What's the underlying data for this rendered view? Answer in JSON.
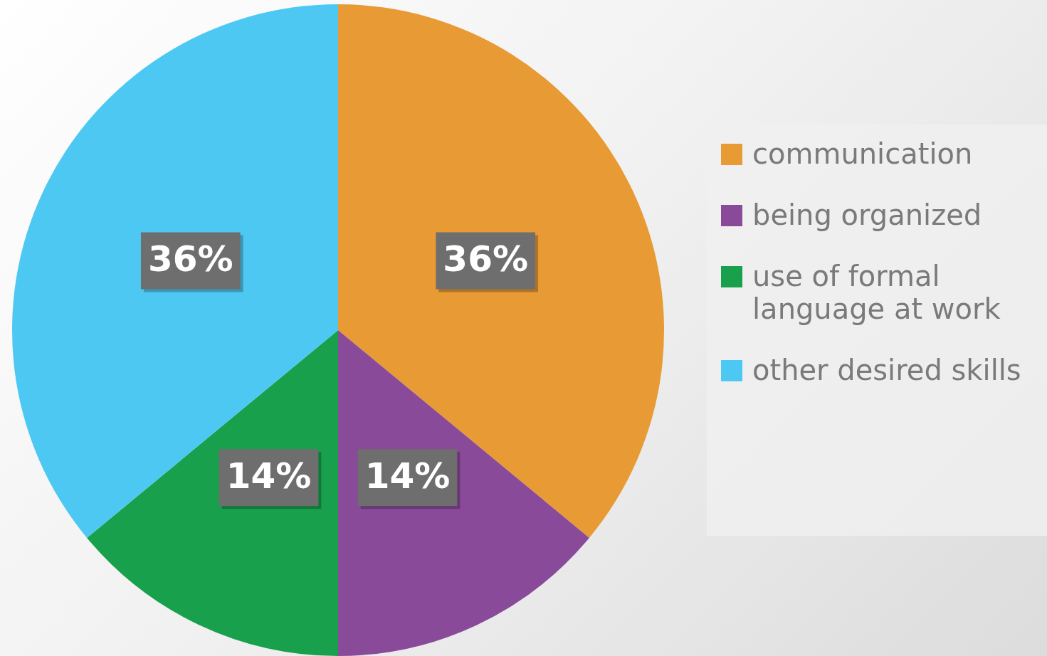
{
  "chart_data": {
    "type": "pie",
    "categories": [
      "communication",
      "being organized",
      "use of formal language at work",
      "other desired skills"
    ],
    "values": [
      36,
      14,
      14,
      36
    ],
    "colors": [
      "#e89a34",
      "#8a4a9a",
      "#18a04c",
      "#4dc8f2"
    ],
    "value_labels": [
      "36%",
      "14%",
      "14%",
      "36%"
    ],
    "legend": "right"
  }
}
